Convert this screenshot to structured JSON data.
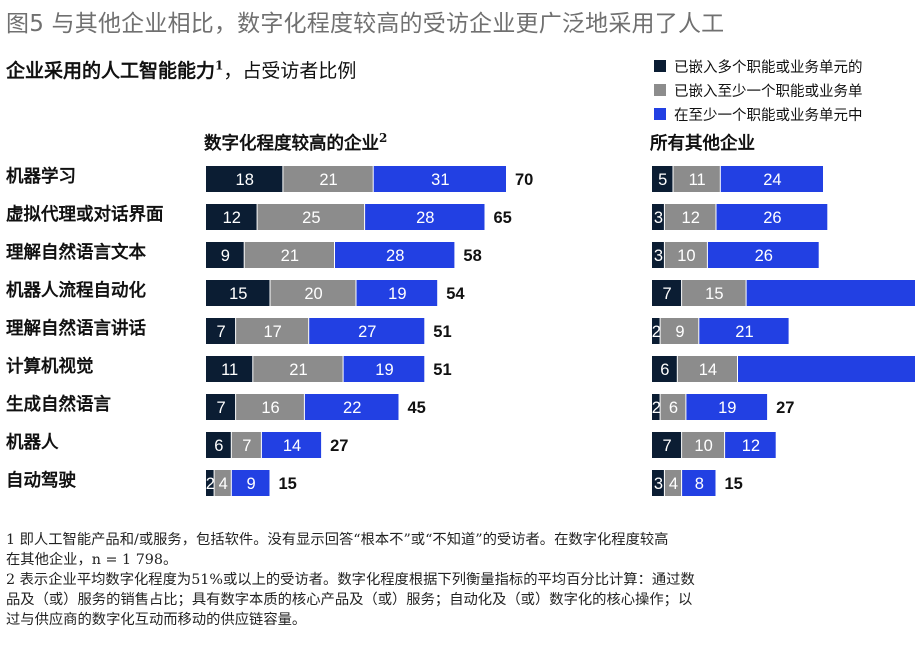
{
  "page": {
    "title": "图5 与其他企业相比，数字化程度较高的受访企业更广泛地采用了人工",
    "subtitle_main": "企业采用的人工智能能力",
    "subtitle_sup": "1",
    "subtitle_rest": "，占受访者比例"
  },
  "legend": [
    {
      "label": "已嵌入多个职能或业务单元的",
      "color": "#0b1d33"
    },
    {
      "label": "已嵌入至少一个职能或业务单",
      "color": "#8c8c8c"
    },
    {
      "label": "在至少一个职能或业务单元中",
      "color": "#2240e3"
    }
  ],
  "footnotes": [
    "1 即人工智能产品和/或服务，包括软件。没有显示回答“根本不”或“不知道”的受访者。在数字化程度较高",
    "在其他企业，n = 1 798。",
    "2 表示企业平均数字化程度为51%或以上的受访者。数字化程度根据下列衡量指标的平均百分比计算：通过数",
    "品及（或）服务的销售占比；具有数字本质的核心产品及（或）服务；自动化及（或）数字化的核心操作；以",
    "过与供应商的数字化互动而移动的供应链容量。"
  ],
  "chart_data": [
    {
      "type": "bar",
      "orientation": "horizontal",
      "stacked": true,
      "title": "数字化程度较高的企业",
      "title_sup": "2",
      "categories": [
        "机器学习",
        "虚拟代理或对话界面",
        "理解自然语言文本",
        "机器人流程自动化",
        "理解自然语言讲话",
        "计算机视觉",
        "生成自然语言",
        "机器人",
        "自动驾驶"
      ],
      "series": [
        {
          "name": "已嵌入多个职能或业务单元的",
          "color": "#0b1d33",
          "values": [
            18,
            12,
            9,
            15,
            7,
            11,
            7,
            6,
            2
          ]
        },
        {
          "name": "已嵌入至少一个职能或业务单",
          "color": "#8c8c8c",
          "values": [
            21,
            25,
            21,
            20,
            17,
            21,
            16,
            7,
            4
          ]
        },
        {
          "name": "在至少一个职能或业务单元中",
          "color": "#2240e3",
          "values": [
            31,
            28,
            28,
            19,
            27,
            19,
            22,
            14,
            9
          ]
        }
      ],
      "totals": [
        70,
        65,
        58,
        54,
        51,
        51,
        45,
        27,
        15
      ]
    },
    {
      "type": "bar",
      "orientation": "horizontal",
      "stacked": true,
      "title": "所有其他企业",
      "categories": [
        "机器学习",
        "虚拟代理或对话界面",
        "理解自然语言文本",
        "机器人流程自动化",
        "理解自然语言讲话",
        "计算机视觉",
        "生成自然语言",
        "机器人",
        "自动驾驶"
      ],
      "series": [
        {
          "name": "已嵌入多个职能或业务单元的",
          "color": "#0b1d33",
          "values": [
            5,
            3,
            3,
            7,
            2,
            6,
            2,
            7,
            3
          ]
        },
        {
          "name": "已嵌入至少一个职能或业务单",
          "color": "#8c8c8c",
          "values": [
            11,
            12,
            10,
            15,
            9,
            14,
            6,
            10,
            4
          ]
        },
        {
          "name": "在至少一个职能或业务单元中",
          "color": "#2240e3",
          "values": [
            24,
            26,
            26,
            null,
            21,
            null,
            19,
            12,
            8
          ]
        }
      ],
      "totals": [
        null,
        null,
        null,
        null,
        null,
        null,
        27,
        null,
        15
      ]
    }
  ]
}
